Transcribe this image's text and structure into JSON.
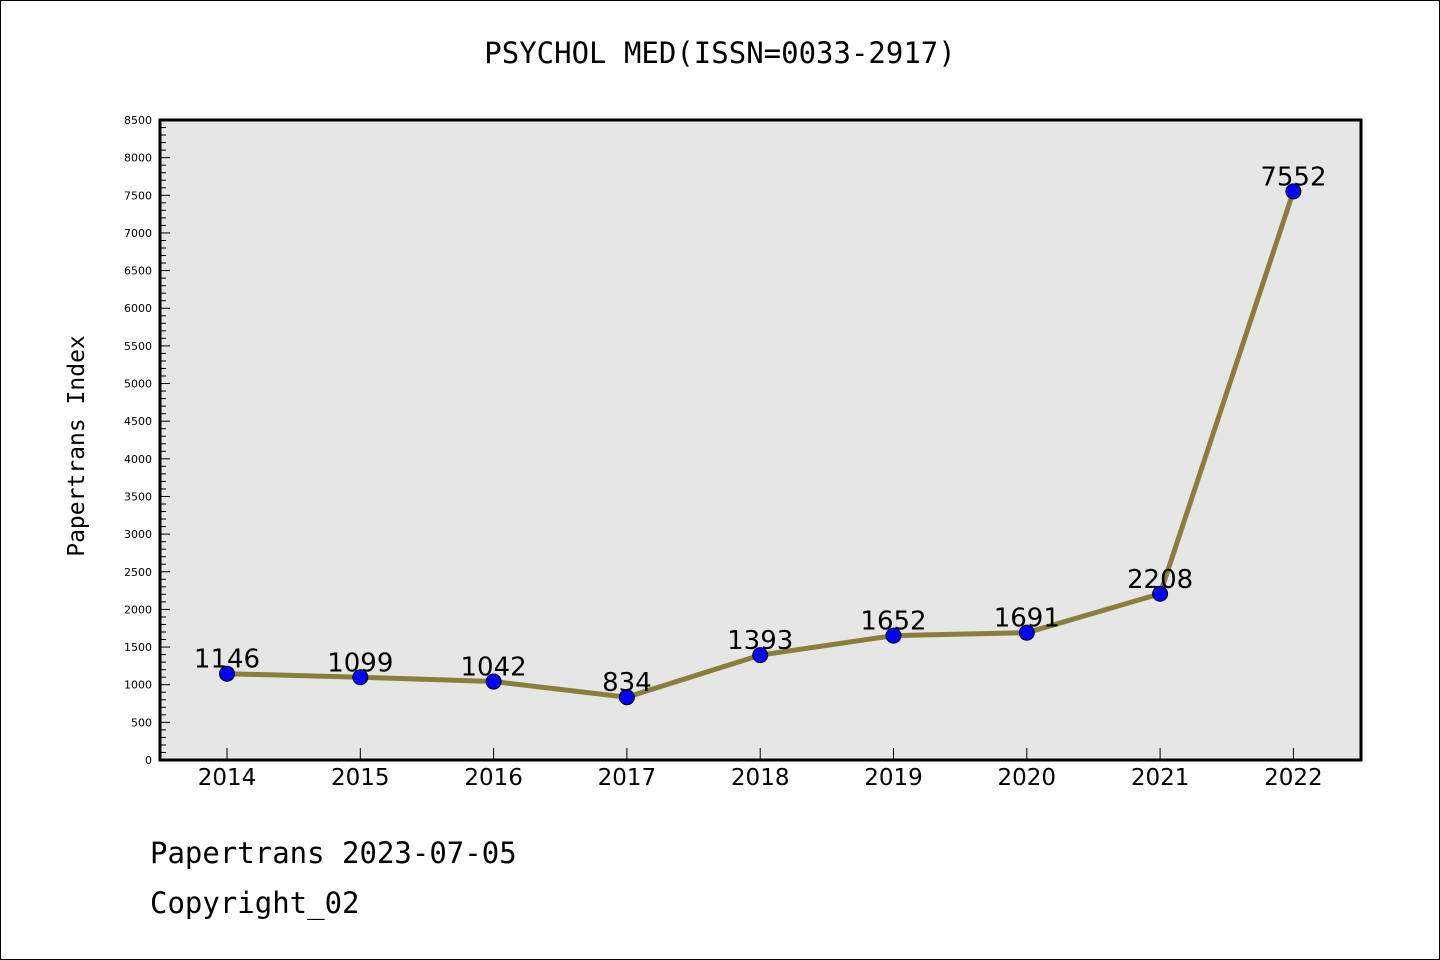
{
  "header": {
    "title": "PSYCHOL MED(ISSN=0033-2917)"
  },
  "footer": {
    "date_line": "Papertrans 2023-07-05",
    "copyright_line": "Copyright_02"
  },
  "chart_data": {
    "type": "line",
    "title": "PSYCHOL MED(ISSN=0033-2917)",
    "xlabel": "",
    "ylabel": "Papertrans Index",
    "categories": [
      "2014",
      "2015",
      "2016",
      "2017",
      "2018",
      "2019",
      "2020",
      "2021",
      "2022"
    ],
    "values": [
      1146,
      1099,
      1042,
      834,
      1393,
      1652,
      1691,
      2208,
      7552
    ],
    "ylim": [
      0,
      8500
    ],
    "yticks": [
      0,
      500,
      1000,
      1500,
      2000,
      2500,
      3000,
      3500,
      4000,
      4500,
      5000,
      5500,
      6000,
      6500,
      7000,
      7500,
      8000,
      8500
    ],
    "grid": false,
    "colors": {
      "line": "#8B7D3A",
      "marker": "#0000FF",
      "plot_background": "#E6E6E6"
    }
  }
}
